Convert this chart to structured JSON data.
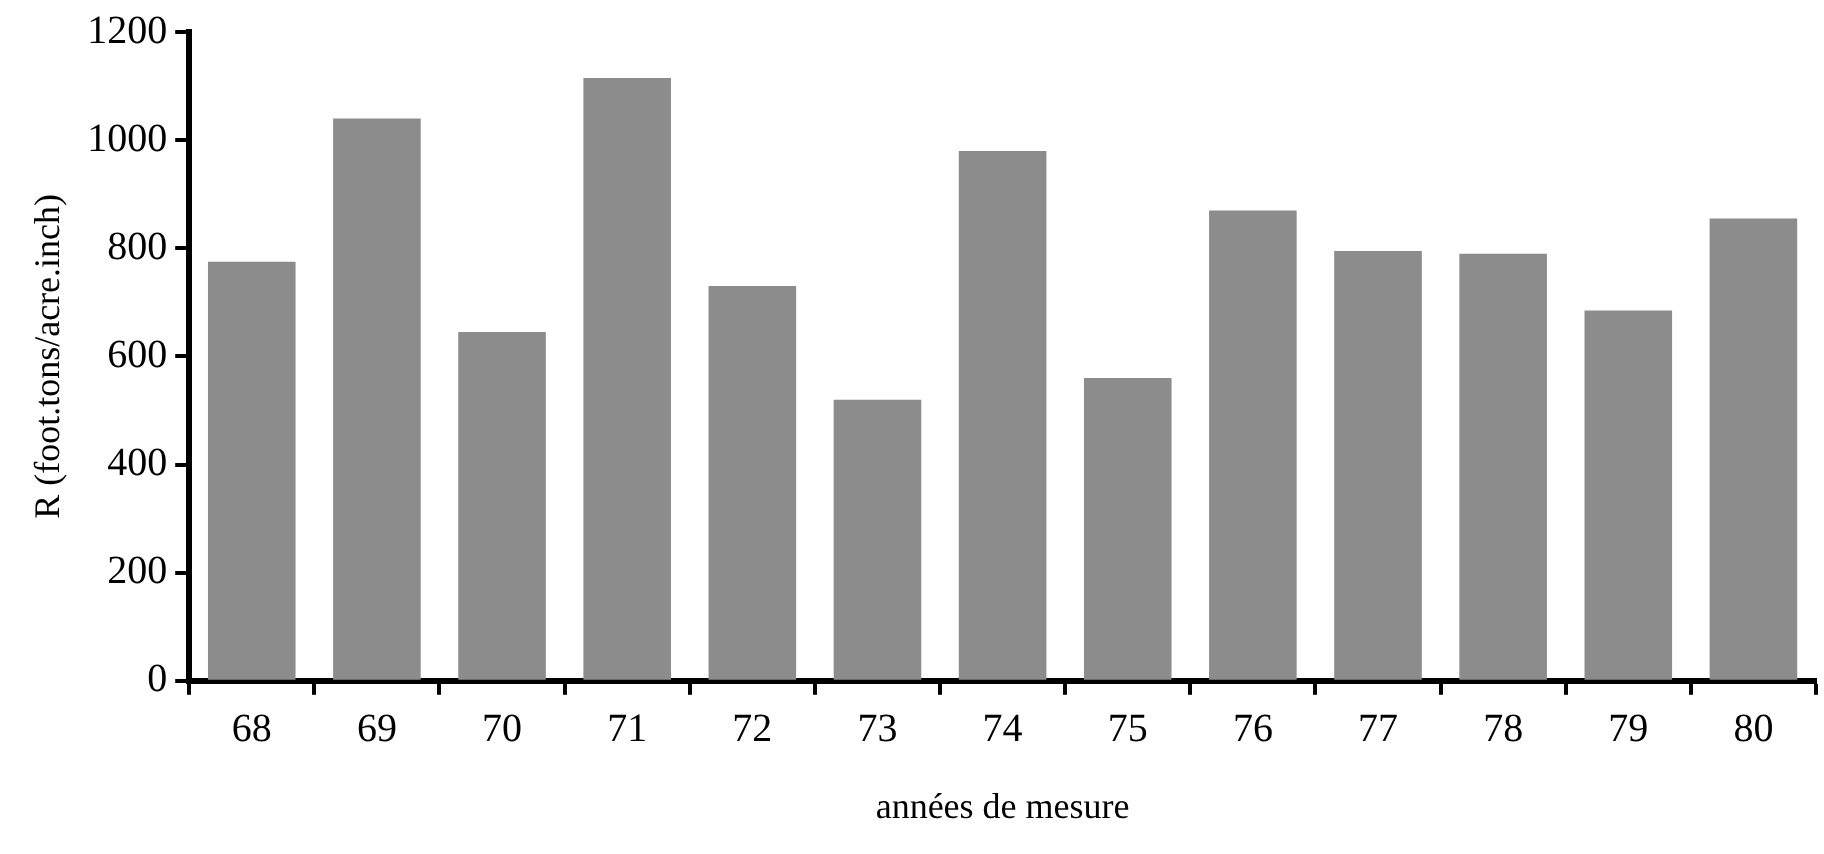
{
  "chart_data": {
    "type": "bar",
    "xlabel": "années de mesure",
    "ylabel": "R (foot.tons/acre.inch)",
    "categories": [
      "68",
      "69",
      "70",
      "71",
      "72",
      "73",
      "74",
      "75",
      "76",
      "77",
      "78",
      "79",
      "80"
    ],
    "values": [
      775,
      1040,
      645,
      1115,
      730,
      520,
      980,
      560,
      870,
      795,
      790,
      685,
      855
    ],
    "color": "#8c8c8c",
    "ylim": [
      0,
      1200
    ],
    "yticks": [
      0,
      200,
      400,
      600,
      800,
      1000,
      1200
    ],
    "grid": false,
    "legend": false
  }
}
